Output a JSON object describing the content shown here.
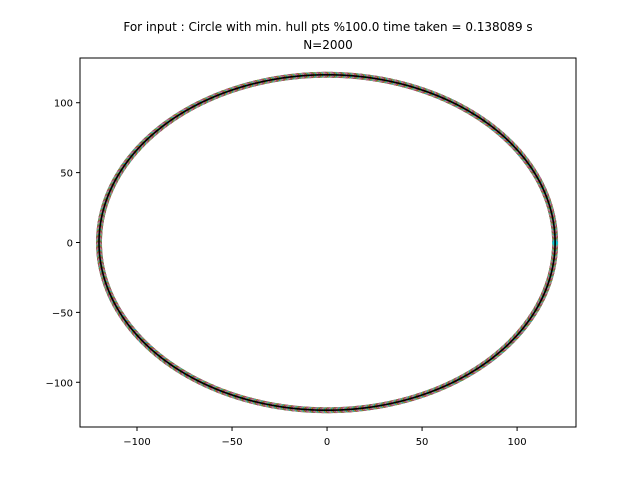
{
  "chart_data": {
    "type": "scatter",
    "title": "For input : Circle with min. hull pts %100.0 time taken = 0.138089 s",
    "subtitle": "N=2000",
    "xlabel": "",
    "ylabel": "",
    "xlim": [
      -130,
      131
    ],
    "ylim": [
      -132,
      132
    ],
    "xticks": [
      -100,
      -50,
      0,
      50,
      100
    ],
    "yticks": [
      -100,
      -50,
      0,
      50,
      100
    ],
    "xtick_labels": [
      "−100",
      "−50",
      "0",
      "50",
      "100"
    ],
    "ytick_labels": [
      "−100",
      "−50",
      "0",
      "50",
      "100"
    ],
    "grid": false,
    "legend": "none",
    "circle": {
      "center": [
        0,
        0
      ],
      "radius": 120,
      "n_points": 2000
    },
    "series": [
      {
        "kind": "points",
        "count": 2000
      },
      {
        "kind": "hull-line",
        "closed": true
      }
    ],
    "colors": {
      "points": [
        "#1f77b4",
        "#ff7f0e",
        "#2ca02c",
        "#d62728",
        "#9467bd",
        "#8c564b",
        "#e377c2",
        "#7f7f7f",
        "#bcbd22",
        "#17becf"
      ],
      "hull": "#000000",
      "axes": "#000000"
    }
  }
}
